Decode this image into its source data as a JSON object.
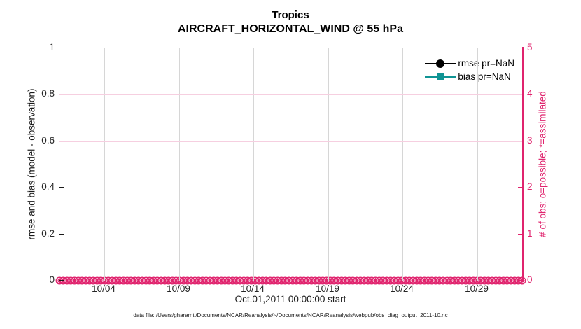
{
  "chart_data": {
    "type": "line",
    "title": "Tropics",
    "subtitle": "AIRCRAFT_HORIZONTAL_WIND @ 55 hPa",
    "xlabel": "Oct.01,2011 00:00:00 start",
    "ylabel_left": "rmse and bias (model - observation)",
    "ylabel_right": "# of obs: o=possible; *=assimilated",
    "ylim_left": [
      0,
      1
    ],
    "ylim_right": [
      0,
      5
    ],
    "yticks_left": [
      "0",
      "0.2",
      "0.4",
      "0.6",
      "0.8",
      "1"
    ],
    "yticks_right": [
      "0",
      "1",
      "2",
      "3",
      "4",
      "5"
    ],
    "xticks": [
      {
        "label": "10/04",
        "day": 4
      },
      {
        "label": "10/09",
        "day": 9
      },
      {
        "label": "10/14",
        "day": 14
      },
      {
        "label": "10/19",
        "day": 19
      },
      {
        "label": "10/24",
        "day": 24
      },
      {
        "label": "10/29",
        "day": 29
      }
    ],
    "x_day_start": 1,
    "x_day_end": 32,
    "grid": true,
    "legend_position": "top-right-inside",
    "series": [
      {
        "name": "rmse pr=NaN",
        "marker": "circle",
        "color": "#000000",
        "values": []
      },
      {
        "name": "bias pr=NaN",
        "marker": "square",
        "color": "#0f9494",
        "values": []
      },
      {
        "name": "# of obs possible",
        "marker": "o",
        "color": "#e0246e",
        "constant_value": 0,
        "n_points": 124
      },
      {
        "name": "# of obs assimilated",
        "marker": "*",
        "color": "#e0246e",
        "constant_value": 0,
        "n_points": 124
      }
    ]
  },
  "footer": {
    "datafile": "data file: /Users/gharamti/Documents/NCAR/Reanalysis/~/Documents/NCAR/Reanalysis/webpub/obs_diag_output_2011-10.nc"
  },
  "colors": {
    "obs_axis_pink": "#e0246e",
    "bias_teal": "#0f9494",
    "rmse_black": "#000000",
    "xgrid_gray": "#d6d6d6",
    "ygrid_pink": "#f6cfe0"
  }
}
